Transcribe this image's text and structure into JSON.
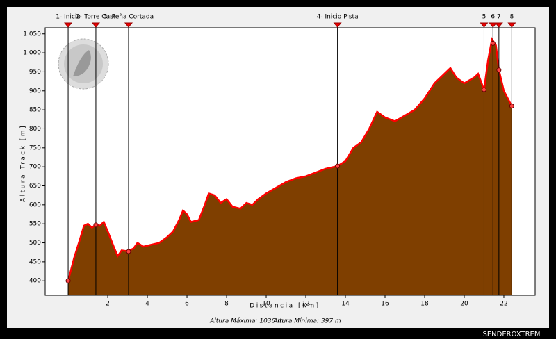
{
  "chart_data": {
    "type": "area",
    "y_label": "Altura Track [m]",
    "x_label": "Distancia [Km]",
    "x": [
      0,
      0.3,
      0.6,
      0.8,
      1.0,
      1.2,
      1.4,
      1.6,
      1.8,
      2.0,
      2.3,
      2.5,
      2.7,
      3.0,
      3.3,
      3.5,
      3.8,
      4.2,
      4.6,
      5.0,
      5.3,
      5.6,
      5.8,
      6.0,
      6.2,
      6.6,
      6.9,
      7.1,
      7.4,
      7.7,
      8.0,
      8.3,
      8.7,
      9.0,
      9.3,
      9.6,
      10.0,
      10.5,
      11.0,
      11.5,
      12.0,
      12.5,
      13.0,
      13.6,
      14.0,
      14.4,
      14.8,
      15.2,
      15.6,
      16.0,
      16.5,
      17.0,
      17.5,
      18.0,
      18.5,
      19.0,
      19.3,
      19.6,
      20.0,
      20.5,
      20.7,
      21.0,
      21.2,
      21.4,
      21.6,
      21.75,
      22.0,
      22.2,
      22.4
    ],
    "values": [
      400,
      460,
      510,
      545,
      550,
      540,
      548,
      545,
      555,
      530,
      490,
      465,
      480,
      478,
      485,
      500,
      490,
      495,
      500,
      515,
      530,
      560,
      585,
      575,
      555,
      560,
      600,
      630,
      625,
      605,
      615,
      595,
      590,
      605,
      600,
      615,
      630,
      645,
      660,
      670,
      675,
      685,
      695,
      702,
      715,
      750,
      765,
      800,
      845,
      830,
      820,
      835,
      850,
      880,
      920,
      945,
      960,
      935,
      920,
      935,
      945,
      903,
      980,
      1036,
      1020,
      955,
      900,
      880,
      860
    ],
    "color": "#7f3f00",
    "line_color": "#ff0000",
    "xlim": [
      -1.16,
      23.58
    ],
    "xticks": [
      2,
      4,
      6,
      8,
      10,
      12,
      14,
      16,
      18,
      20,
      22
    ],
    "ylim": [
      362,
      1066
    ],
    "yticks": [
      400,
      450,
      500,
      550,
      600,
      650,
      700,
      750,
      800,
      850,
      900,
      950,
      {
        "value": 1000,
        "label": "1.000"
      },
      {
        "value": 1050,
        "label": "1.050"
      }
    ],
    "waypoints": [
      {
        "label": "1- Inicio",
        "x": 0,
        "value": 400
      },
      {
        "label": "2- Torre Cast",
        "x": 1.4,
        "value": 547
      },
      {
        "label": "3- Peña Cortada",
        "x": 3.05,
        "value": 477
      },
      {
        "label": "4- Inicio Pista",
        "x": 13.6,
        "value": 702
      },
      {
        "label": "5",
        "x": 21.0,
        "value": 903
      },
      {
        "label": "6",
        "x": 21.45,
        "value": 1025
      },
      {
        "label": "7",
        "x": 21.75,
        "value": 955
      },
      {
        "label": "8",
        "x": 22.4,
        "value": 860
      }
    ],
    "footer_max": "Altura Máxima: 1036 m",
    "footer_min": "Altura Mínima: 397 m",
    "watermark": "SENDEROXTREM"
  }
}
